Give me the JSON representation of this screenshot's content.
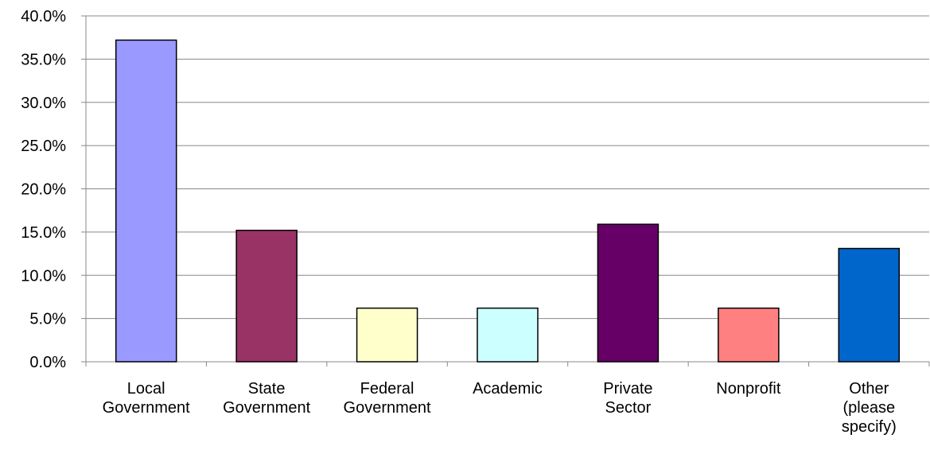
{
  "chart_data": {
    "type": "bar",
    "categories": [
      "Local Government",
      "State Government",
      "Federal Government",
      "Academic",
      "Private Sector",
      "Nonprofit",
      "Other (please specify)"
    ],
    "values": [
      37.2,
      15.2,
      6.2,
      6.2,
      15.9,
      6.2,
      13.1
    ],
    "colors": [
      "#9999ff",
      "#993366",
      "#ffffcc",
      "#ccffff",
      "#660066",
      "#ff8080",
      "#0066cc"
    ],
    "ylim": [
      0,
      40
    ],
    "yticks": [
      {
        "value": 0,
        "label": "0.0%"
      },
      {
        "value": 5,
        "label": "5.0%"
      },
      {
        "value": 10,
        "label": "10.0%"
      },
      {
        "value": 15,
        "label": "15.0%"
      },
      {
        "value": 20,
        "label": "20.0%"
      },
      {
        "value": 25,
        "label": "25.0%"
      },
      {
        "value": 30,
        "label": "30.0%"
      },
      {
        "value": 35,
        "label": "35.0%"
      },
      {
        "value": 40,
        "label": "40.0%"
      }
    ],
    "grid": true
  }
}
